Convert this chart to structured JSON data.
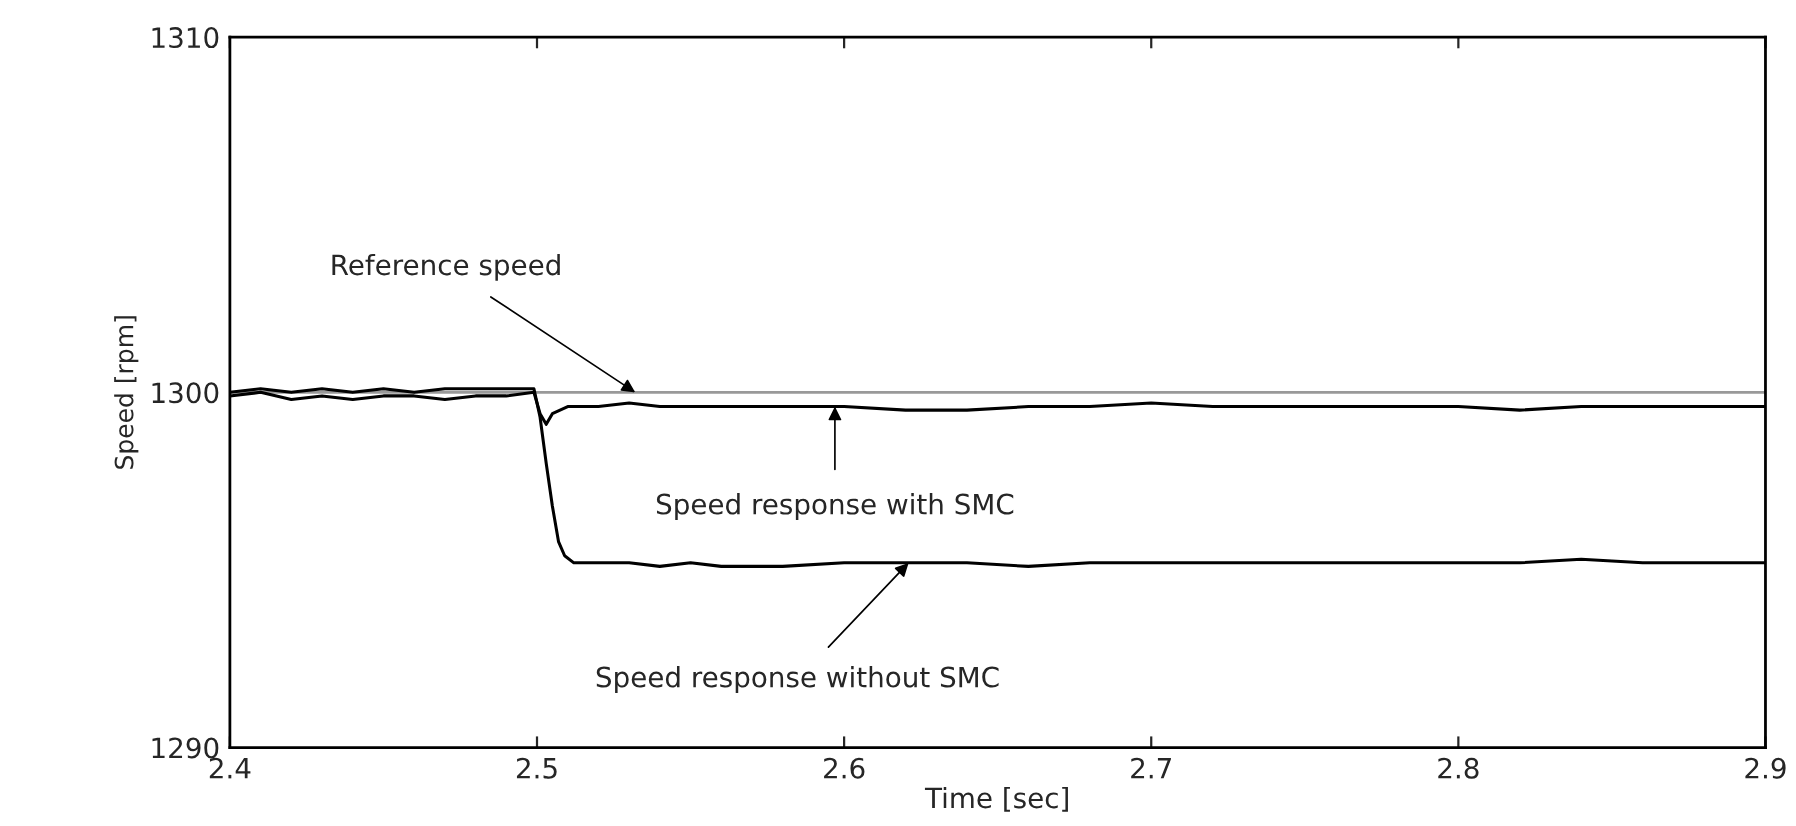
{
  "chart_data": {
    "type": "line",
    "xlabel": "Time [sec]",
    "ylabel": "Speed [rpm]",
    "xlim": [
      2.4,
      2.9
    ],
    "ylim": [
      1290,
      1310
    ],
    "xticks": [
      2.4,
      2.5,
      2.6,
      2.7,
      2.8,
      2.9
    ],
    "yticks": [
      1290,
      1300,
      1310
    ],
    "grid": false,
    "legend": false,
    "marker": "none",
    "line_style": "solid",
    "ref_lines": [
      {
        "axis": "y",
        "value": 1300,
        "color": "#999999"
      }
    ],
    "series": [
      {
        "color": "#000000",
        "x": [
          2.4,
          2.41,
          2.42,
          2.43,
          2.44,
          2.45,
          2.46,
          2.47,
          2.48,
          2.49,
          2.499,
          2.501,
          2.503,
          2.505,
          2.51,
          2.52,
          2.53,
          2.54,
          2.55,
          2.56,
          2.58,
          2.6,
          2.62,
          2.64,
          2.66,
          2.68,
          2.7,
          2.72,
          2.74,
          2.76,
          2.78,
          2.8,
          2.82,
          2.84,
          2.86,
          2.88,
          2.9
        ],
        "values": [
          1299.9,
          1300.0,
          1299.8,
          1299.9,
          1299.8,
          1299.9,
          1299.9,
          1299.8,
          1299.9,
          1299.9,
          1300.0,
          1299.4,
          1299.1,
          1299.4,
          1299.6,
          1299.6,
          1299.7,
          1299.6,
          1299.6,
          1299.6,
          1299.6,
          1299.6,
          1299.5,
          1299.5,
          1299.6,
          1299.6,
          1299.7,
          1299.6,
          1299.6,
          1299.6,
          1299.6,
          1299.6,
          1299.5,
          1299.6,
          1299.6,
          1299.6,
          1299.6
        ]
      },
      {
        "color": "#000000",
        "x": [
          2.4,
          2.41,
          2.42,
          2.43,
          2.44,
          2.45,
          2.46,
          2.47,
          2.48,
          2.49,
          2.499,
          2.501,
          2.503,
          2.505,
          2.507,
          2.509,
          2.512,
          2.52,
          2.53,
          2.54,
          2.55,
          2.56,
          2.58,
          2.6,
          2.62,
          2.64,
          2.66,
          2.68,
          2.7,
          2.72,
          2.74,
          2.76,
          2.78,
          2.8,
          2.82,
          2.84,
          2.86,
          2.88,
          2.9
        ],
        "values": [
          1300.0,
          1300.1,
          1300.0,
          1300.1,
          1300.0,
          1300.1,
          1300.0,
          1300.1,
          1300.1,
          1300.1,
          1300.1,
          1299.3,
          1298.0,
          1296.8,
          1295.8,
          1295.4,
          1295.2,
          1295.2,
          1295.2,
          1295.1,
          1295.2,
          1295.1,
          1295.1,
          1295.2,
          1295.2,
          1295.2,
          1295.1,
          1295.2,
          1295.2,
          1295.2,
          1295.2,
          1295.2,
          1295.2,
          1295.2,
          1295.2,
          1295.3,
          1295.2,
          1295.2,
          1295.2
        ]
      }
    ],
    "annotations": [
      {
        "text": "Reference speed",
        "x": 2.532,
        "y": 1300
      },
      {
        "text": "Speed response with SMC",
        "x": 2.597,
        "y": 1299.6
      },
      {
        "text": "Speed response without SMC",
        "x": 2.621,
        "y": 1295.2
      }
    ]
  }
}
